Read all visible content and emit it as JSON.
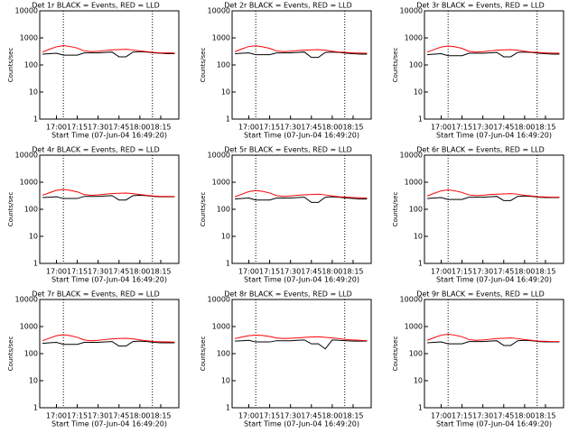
{
  "chart_data": [
    {
      "type": "line",
      "title": "Det 1r BLACK = Events, RED = LLD",
      "xlabel": "Start Time (07-Jun-04 16:49:20)",
      "ylabel": "Counts/sec",
      "x": [
        1010,
        1015,
        1020,
        1025,
        1030,
        1035,
        1040,
        1045,
        1050,
        1055,
        1060,
        1065,
        1070,
        1075,
        1080,
        1085,
        1090,
        1095,
        1100,
        1105
      ],
      "series": [
        {
          "color": "#000000",
          "values": [
            250,
            260,
            270,
            230,
            230,
            230,
            280,
            280,
            280,
            290,
            300,
            200,
            200,
            300,
            310,
            300,
            280,
            270,
            260,
            260
          ]
        },
        {
          "color": "#ff0000",
          "values": [
            300,
            380,
            470,
            520,
            480,
            420,
            330,
            310,
            320,
            340,
            360,
            370,
            380,
            360,
            330,
            310,
            290,
            280,
            280,
            275
          ]
        }
      ],
      "xlim": [
        1008,
        1108
      ],
      "ylim": [
        1,
        10000
      ],
      "ylog": true,
      "xticks": [
        {
          "value": 1020,
          "label": "17:00"
        },
        {
          "value": 1035,
          "label": "17:15"
        },
        {
          "value": 1050,
          "label": "17:30"
        },
        {
          "value": 1065,
          "label": "17:45"
        },
        {
          "value": 1080,
          "label": "18:00"
        },
        {
          "value": 1095,
          "label": "18:15"
        }
      ],
      "yticks": [
        1,
        10,
        100,
        1000,
        10000
      ],
      "vlines": [
        1025,
        1089
      ]
    },
    {
      "type": "line",
      "title": "Det 2r BLACK = Events, RED = LLD",
      "xlabel": "Start Time (07-Jun-04 16:49:20)",
      "ylabel": "Counts/sec",
      "x": [
        1010,
        1015,
        1020,
        1025,
        1030,
        1035,
        1040,
        1045,
        1050,
        1055,
        1060,
        1065,
        1070,
        1075,
        1080,
        1085,
        1090,
        1095,
        1100,
        1105
      ],
      "series": [
        {
          "color": "#000000",
          "values": [
            260,
            270,
            280,
            240,
            240,
            240,
            280,
            280,
            280,
            290,
            300,
            190,
            190,
            290,
            300,
            290,
            270,
            260,
            250,
            250
          ]
        },
        {
          "color": "#ff0000",
          "values": [
            310,
            390,
            480,
            510,
            470,
            410,
            330,
            310,
            320,
            340,
            350,
            360,
            370,
            350,
            320,
            300,
            290,
            280,
            275,
            270
          ]
        }
      ],
      "xlim": [
        1008,
        1108
      ],
      "ylim": [
        1,
        10000
      ],
      "ylog": true,
      "xticks": [
        {
          "value": 1020,
          "label": "17:00"
        },
        {
          "value": 1035,
          "label": "17:15"
        },
        {
          "value": 1050,
          "label": "17:30"
        },
        {
          "value": 1065,
          "label": "17:45"
        },
        {
          "value": 1080,
          "label": "18:00"
        },
        {
          "value": 1095,
          "label": "18:15"
        }
      ],
      "yticks": [
        1,
        10,
        100,
        1000,
        10000
      ],
      "vlines": [
        1025,
        1089
      ]
    },
    {
      "type": "line",
      "title": "Det 3r BLACK = Events, RED = LLD",
      "xlabel": "Start Time (07-Jun-04 16:49:20)",
      "ylabel": "Counts/sec",
      "x": [
        1010,
        1015,
        1020,
        1025,
        1030,
        1035,
        1040,
        1045,
        1050,
        1055,
        1060,
        1065,
        1070,
        1075,
        1080,
        1085,
        1090,
        1095,
        1100,
        1105
      ],
      "series": [
        {
          "color": "#000000",
          "values": [
            240,
            250,
            260,
            220,
            220,
            220,
            270,
            270,
            270,
            280,
            290,
            200,
            200,
            290,
            300,
            290,
            270,
            260,
            250,
            250
          ]
        },
        {
          "color": "#ff0000",
          "values": [
            300,
            370,
            460,
            500,
            470,
            410,
            320,
            300,
            310,
            330,
            350,
            360,
            370,
            350,
            320,
            300,
            290,
            280,
            275,
            270
          ]
        }
      ],
      "xlim": [
        1008,
        1108
      ],
      "ylim": [
        1,
        10000
      ],
      "ylog": true,
      "xticks": [
        {
          "value": 1020,
          "label": "17:00"
        },
        {
          "value": 1035,
          "label": "17:15"
        },
        {
          "value": 1050,
          "label": "17:30"
        },
        {
          "value": 1065,
          "label": "17:45"
        },
        {
          "value": 1080,
          "label": "18:00"
        },
        {
          "value": 1095,
          "label": "18:15"
        }
      ],
      "yticks": [
        1,
        10,
        100,
        1000,
        10000
      ],
      "vlines": [
        1025,
        1089
      ]
    },
    {
      "type": "line",
      "title": "Det 4r BLACK = Events, RED = LLD",
      "xlabel": "Start Time (07-Jun-04 16:49:20)",
      "ylabel": "Counts/sec",
      "x": [
        1010,
        1015,
        1020,
        1025,
        1030,
        1035,
        1040,
        1045,
        1050,
        1055,
        1060,
        1065,
        1070,
        1075,
        1080,
        1085,
        1090,
        1095,
        1100,
        1105
      ],
      "series": [
        {
          "color": "#000000",
          "values": [
            270,
            280,
            290,
            250,
            250,
            250,
            300,
            300,
            300,
            310,
            320,
            220,
            220,
            320,
            330,
            320,
            300,
            290,
            290,
            290
          ]
        },
        {
          "color": "#ff0000",
          "values": [
            330,
            410,
            500,
            540,
            500,
            440,
            350,
            330,
            340,
            360,
            380,
            390,
            400,
            380,
            350,
            330,
            310,
            300,
            300,
            295
          ]
        }
      ],
      "xlim": [
        1008,
        1108
      ],
      "ylim": [
        1,
        10000
      ],
      "ylog": true,
      "xticks": [
        {
          "value": 1020,
          "label": "17:00"
        },
        {
          "value": 1035,
          "label": "17:15"
        },
        {
          "value": 1050,
          "label": "17:30"
        },
        {
          "value": 1065,
          "label": "17:45"
        },
        {
          "value": 1080,
          "label": "18:00"
        },
        {
          "value": 1095,
          "label": "18:15"
        }
      ],
      "yticks": [
        1,
        10,
        100,
        1000,
        10000
      ],
      "vlines": [
        1025,
        1089
      ]
    },
    {
      "type": "line",
      "title": "Det 5r BLACK = Events, RED = LLD",
      "xlabel": "Start Time (07-Jun-04 16:49:20)",
      "ylabel": "Counts/sec",
      "x": [
        1010,
        1015,
        1020,
        1025,
        1030,
        1035,
        1040,
        1045,
        1050,
        1055,
        1060,
        1065,
        1070,
        1075,
        1080,
        1085,
        1090,
        1095,
        1100,
        1105
      ],
      "series": [
        {
          "color": "#000000",
          "values": [
            240,
            250,
            260,
            220,
            220,
            220,
            260,
            260,
            260,
            270,
            280,
            180,
            180,
            280,
            290,
            280,
            260,
            250,
            240,
            240
          ]
        },
        {
          "color": "#ff0000",
          "values": [
            290,
            360,
            450,
            490,
            460,
            400,
            320,
            300,
            310,
            330,
            340,
            350,
            360,
            340,
            310,
            290,
            280,
            270,
            265,
            260
          ]
        }
      ],
      "xlim": [
        1008,
        1108
      ],
      "ylim": [
        1,
        10000
      ],
      "ylog": true,
      "xticks": [
        {
          "value": 1020,
          "label": "17:00"
        },
        {
          "value": 1035,
          "label": "17:15"
        },
        {
          "value": 1050,
          "label": "17:30"
        },
        {
          "value": 1065,
          "label": "17:45"
        },
        {
          "value": 1080,
          "label": "18:00"
        },
        {
          "value": 1095,
          "label": "18:15"
        }
      ],
      "yticks": [
        1,
        10,
        100,
        1000,
        10000
      ],
      "vlines": [
        1025,
        1089
      ]
    },
    {
      "type": "line",
      "title": "Det 6r BLACK = Events, RED = LLD",
      "xlabel": "Start Time (07-Jun-04 16:49:20)",
      "ylabel": "Counts/sec",
      "x": [
        1010,
        1015,
        1020,
        1025,
        1030,
        1035,
        1040,
        1045,
        1050,
        1055,
        1060,
        1065,
        1070,
        1075,
        1080,
        1085,
        1090,
        1095,
        1100,
        1105
      ],
      "series": [
        {
          "color": "#000000",
          "values": [
            250,
            260,
            270,
            230,
            230,
            230,
            280,
            280,
            280,
            290,
            300,
            210,
            210,
            300,
            310,
            300,
            280,
            270,
            270,
            270
          ]
        },
        {
          "color": "#ff0000",
          "values": [
            310,
            390,
            480,
            520,
            480,
            420,
            340,
            320,
            330,
            350,
            360,
            370,
            380,
            360,
            330,
            310,
            290,
            285,
            280,
            280
          ]
        }
      ],
      "xlim": [
        1008,
        1108
      ],
      "ylim": [
        1,
        10000
      ],
      "ylog": true,
      "xticks": [
        {
          "value": 1020,
          "label": "17:00"
        },
        {
          "value": 1035,
          "label": "17:15"
        },
        {
          "value": 1050,
          "label": "17:30"
        },
        {
          "value": 1065,
          "label": "17:45"
        },
        {
          "value": 1080,
          "label": "18:00"
        },
        {
          "value": 1095,
          "label": "18:15"
        }
      ],
      "yticks": [
        1,
        10,
        100,
        1000,
        10000
      ],
      "vlines": [
        1025,
        1089
      ]
    },
    {
      "type": "line",
      "title": "Det 7r BLACK = Events, RED = LLD",
      "xlabel": "Start Time (07-Jun-04 16:49:20)",
      "ylabel": "Counts/sec",
      "x": [
        1010,
        1015,
        1020,
        1025,
        1030,
        1035,
        1040,
        1045,
        1050,
        1055,
        1060,
        1065,
        1070,
        1075,
        1080,
        1085,
        1090,
        1095,
        1100,
        1105
      ],
      "series": [
        {
          "color": "#000000",
          "values": [
            240,
            250,
            260,
            220,
            220,
            220,
            260,
            260,
            260,
            270,
            280,
            190,
            190,
            280,
            290,
            280,
            260,
            250,
            250,
            250
          ]
        },
        {
          "color": "#ff0000",
          "values": [
            300,
            370,
            460,
            500,
            460,
            400,
            320,
            300,
            310,
            330,
            350,
            360,
            370,
            350,
            320,
            300,
            280,
            275,
            270,
            265
          ]
        }
      ],
      "xlim": [
        1008,
        1108
      ],
      "ylim": [
        1,
        10000
      ],
      "ylog": true,
      "xticks": [
        {
          "value": 1020,
          "label": "17:00"
        },
        {
          "value": 1035,
          "label": "17:15"
        },
        {
          "value": 1050,
          "label": "17:30"
        },
        {
          "value": 1065,
          "label": "17:45"
        },
        {
          "value": 1080,
          "label": "18:00"
        },
        {
          "value": 1095,
          "label": "18:15"
        }
      ],
      "yticks": [
        1,
        10,
        100,
        1000,
        10000
      ],
      "vlines": [
        1025,
        1089
      ]
    },
    {
      "type": "line",
      "title": "Det 8r BLACK = Events, RED = LLD",
      "xlabel": "Start Time (07-Jun-04 16:49:20)",
      "ylabel": "Counts/sec",
      "x": [
        1010,
        1015,
        1020,
        1025,
        1030,
        1035,
        1040,
        1045,
        1050,
        1055,
        1060,
        1065,
        1070,
        1075,
        1080,
        1085,
        1090,
        1095,
        1100,
        1105
      ],
      "series": [
        {
          "color": "#000000",
          "values": [
            290,
            300,
            310,
            270,
            270,
            270,
            300,
            300,
            300,
            310,
            320,
            230,
            230,
            150,
            320,
            310,
            300,
            290,
            290,
            290
          ]
        },
        {
          "color": "#ff0000",
          "values": [
            360,
            410,
            460,
            480,
            470,
            430,
            380,
            360,
            370,
            380,
            400,
            410,
            420,
            400,
            380,
            360,
            330,
            320,
            310,
            300
          ]
        }
      ],
      "xlim": [
        1008,
        1108
      ],
      "ylim": [
        1,
        10000
      ],
      "ylog": true,
      "xticks": [
        {
          "value": 1020,
          "label": "17:00"
        },
        {
          "value": 1035,
          "label": "17:15"
        },
        {
          "value": 1050,
          "label": "17:30"
        },
        {
          "value": 1065,
          "label": "17:45"
        },
        {
          "value": 1080,
          "label": "18:00"
        },
        {
          "value": 1095,
          "label": "18:15"
        }
      ],
      "yticks": [
        1,
        10,
        100,
        1000,
        10000
      ],
      "vlines": [
        1025,
        1089
      ]
    },
    {
      "type": "line",
      "title": "Det 9r BLACK = Events, RED = LLD",
      "xlabel": "Start Time (07-Jun-04 16:49:20)",
      "ylabel": "Counts/sec",
      "x": [
        1010,
        1015,
        1020,
        1025,
        1030,
        1035,
        1040,
        1045,
        1050,
        1055,
        1060,
        1065,
        1070,
        1075,
        1080,
        1085,
        1090,
        1095,
        1100,
        1105
      ],
      "series": [
        {
          "color": "#000000",
          "values": [
            250,
            260,
            270,
            230,
            230,
            230,
            280,
            280,
            280,
            290,
            300,
            200,
            200,
            300,
            310,
            300,
            280,
            270,
            270,
            270
          ]
        },
        {
          "color": "#ff0000",
          "values": [
            310,
            390,
            480,
            520,
            480,
            420,
            330,
            310,
            320,
            340,
            360,
            370,
            380,
            360,
            330,
            310,
            290,
            285,
            280,
            280
          ]
        }
      ],
      "xlim": [
        1008,
        1108
      ],
      "ylim": [
        1,
        10000
      ],
      "ylog": true,
      "xticks": [
        {
          "value": 1020,
          "label": "17:00"
        },
        {
          "value": 1035,
          "label": "17:15"
        },
        {
          "value": 1050,
          "label": "17:30"
        },
        {
          "value": 1065,
          "label": "17:45"
        },
        {
          "value": 1080,
          "label": "18:00"
        },
        {
          "value": 1095,
          "label": "18:15"
        }
      ],
      "yticks": [
        1,
        10,
        100,
        1000,
        10000
      ],
      "vlines": [
        1025,
        1089
      ]
    }
  ]
}
